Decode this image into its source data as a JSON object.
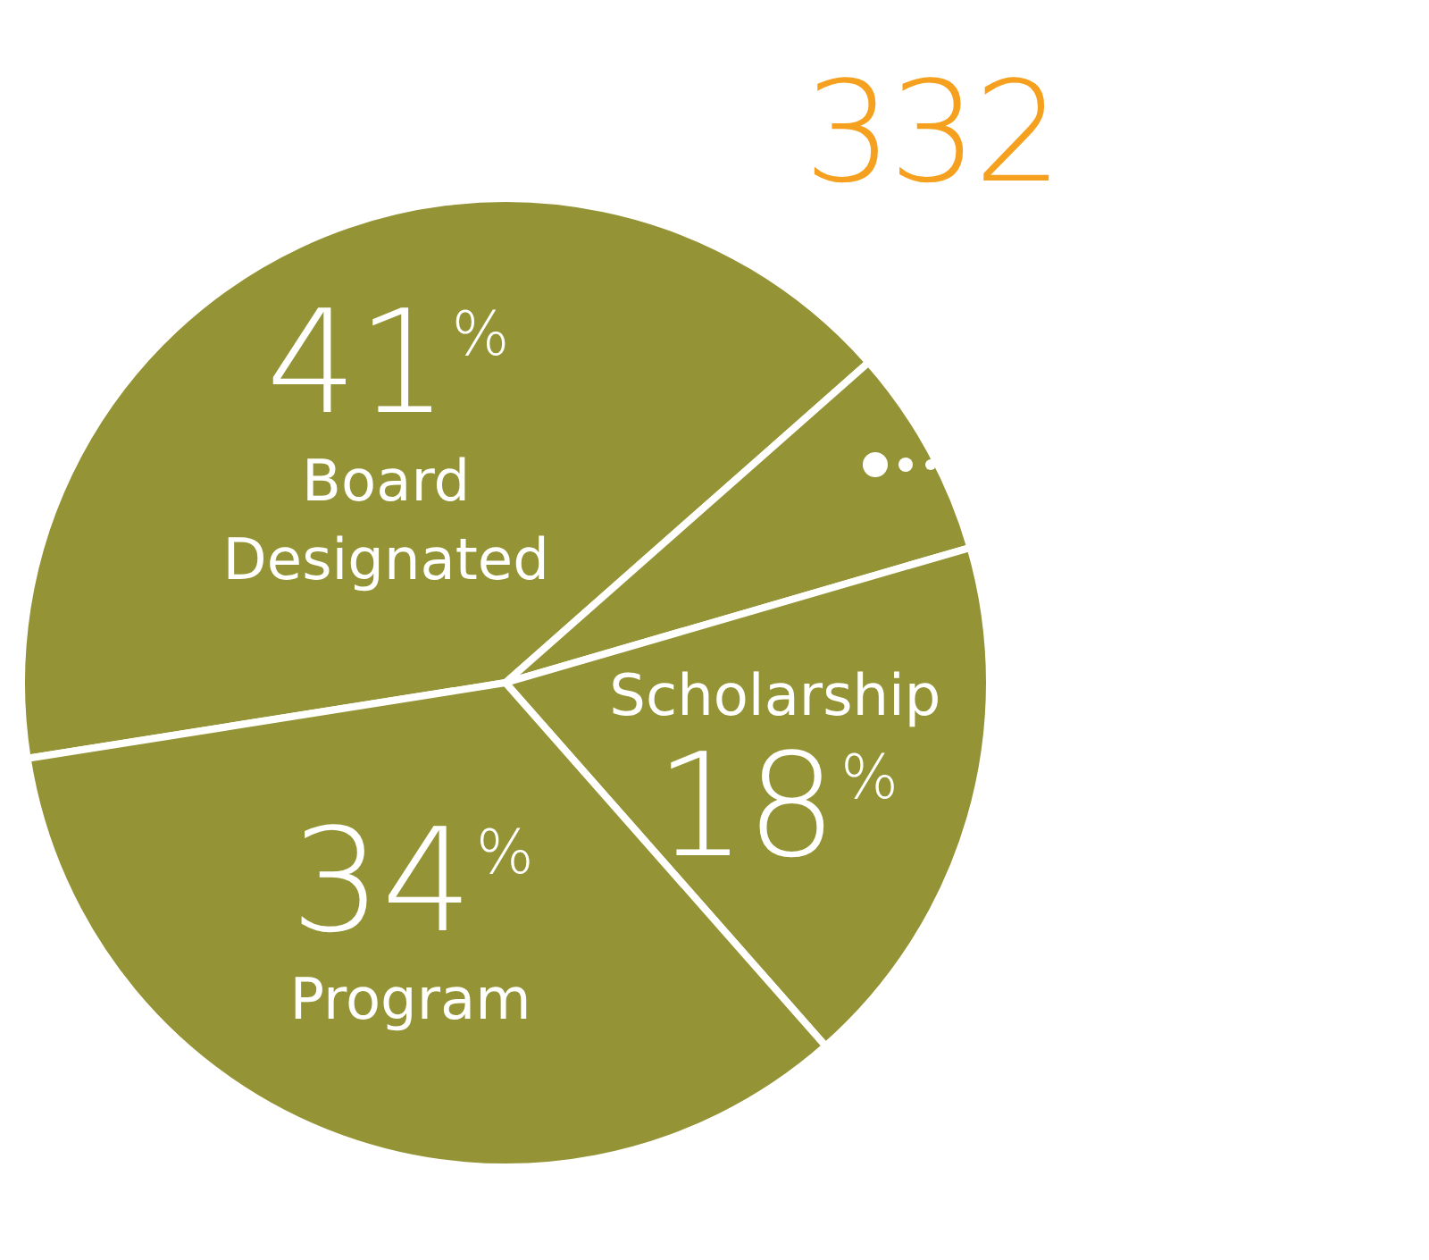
{
  "chart_data": {
    "type": "pie",
    "title": "332",
    "categories": [
      "Board Designated",
      null,
      "Scholarship",
      "Program"
    ],
    "values": [
      41,
      7,
      18,
      34
    ],
    "value_labels": [
      "41%",
      null,
      "18%",
      "34%"
    ],
    "colors": [
      "#949335",
      "#949335",
      "#949335",
      "#949335"
    ],
    "legend": false
  }
}
